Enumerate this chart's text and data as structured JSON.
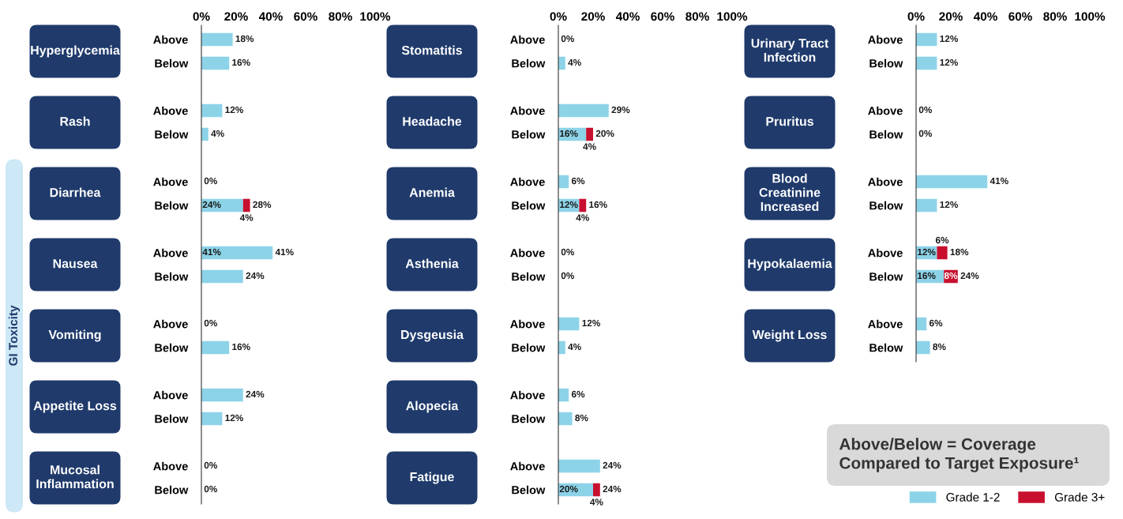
{
  "chart_data": [
    {
      "type": "bar",
      "orientation": "horizontal",
      "stacked": true,
      "grid": false,
      "legend": false,
      "categories": [
        "Above",
        "Below",
        "Above",
        "Below",
        "Above",
        "Below",
        "Above",
        "Below",
        "Above",
        "Below",
        "Above",
        "Below",
        "Above",
        "Below"
      ],
      "xlim": [
        0,
        100
      ],
      "xticks": [
        {
          "value": 0,
          "label": "0%"
        },
        {
          "value": 20,
          "label": "20%"
        },
        {
          "value": 40,
          "label": "40%"
        },
        {
          "value": 60,
          "label": "60%"
        },
        {
          "value": 80,
          "label": "80%"
        },
        {
          "value": 100,
          "label": "100%"
        }
      ],
      "series": [
        {
          "color": "#8dd3e8",
          "values": [
            18,
            16,
            12,
            4,
            0,
            24,
            41,
            24,
            0,
            16,
            24,
            12,
            0,
            0
          ],
          "value_labels": [
            null,
            null,
            null,
            null,
            null,
            "24%",
            "41%",
            null,
            null,
            null,
            null,
            null,
            null,
            null
          ]
        },
        {
          "color": "#c8102e",
          "values": [
            null,
            null,
            null,
            null,
            null,
            4,
            null,
            null,
            null,
            null,
            null,
            null,
            null,
            null
          ],
          "value_labels": [
            null,
            null,
            null,
            null,
            null,
            "4%",
            null,
            null,
            null,
            null,
            null,
            null,
            null,
            null
          ]
        }
      ],
      "totals": [
        "18%",
        "16%",
        "12%",
        "4%",
        "0%",
        "28%",
        "41%",
        "24%",
        "0%",
        "16%",
        "24%",
        "12%",
        "0%",
        "0%"
      ],
      "annotations": [
        "Hyperglycemia",
        "Rash",
        "Diarrhea",
        "Nausea",
        "Vomiting",
        "Appetite Loss",
        "Mucosal\nInflammation",
        "GI Toxicity"
      ]
    },
    {
      "type": "bar",
      "orientation": "horizontal",
      "stacked": true,
      "grid": false,
      "legend": false,
      "categories": [
        "Above",
        "Below",
        "Above",
        "Below",
        "Above",
        "Below",
        "Above",
        "Below",
        "Above",
        "Below",
        "Above",
        "Below",
        "Above",
        "Below"
      ],
      "xlim": [
        0,
        100
      ],
      "xticks": [
        {
          "value": 0,
          "label": "0%"
        },
        {
          "value": 20,
          "label": "20%"
        },
        {
          "value": 40,
          "label": "40%"
        },
        {
          "value": 60,
          "label": "60%"
        },
        {
          "value": 80,
          "label": "80%"
        },
        {
          "value": 100,
          "label": "100%"
        }
      ],
      "series": [
        {
          "color": "#8dd3e8",
          "values": [
            0,
            4,
            29,
            16,
            6,
            12,
            0,
            0,
            12,
            4,
            6,
            8,
            24,
            20
          ],
          "value_labels": [
            null,
            null,
            null,
            "16%",
            null,
            "12%",
            null,
            null,
            null,
            null,
            null,
            null,
            null,
            "20%"
          ]
        },
        {
          "color": "#c8102e",
          "values": [
            null,
            null,
            null,
            4,
            null,
            4,
            null,
            null,
            null,
            null,
            null,
            null,
            null,
            4
          ],
          "value_labels": [
            null,
            null,
            null,
            "4%",
            null,
            "4%",
            null,
            null,
            null,
            null,
            null,
            null,
            null,
            "4%"
          ]
        }
      ],
      "totals": [
        "0%",
        "4%",
        "29%",
        "20%",
        "6%",
        "16%",
        "0%",
        "0%",
        "12%",
        "4%",
        "6%",
        "8%",
        "24%",
        "24%"
      ],
      "annotations": [
        "Stomatitis",
        "Headache",
        "Anemia",
        "Asthenia",
        "Dysgeusia",
        "Alopecia",
        "Fatigue"
      ]
    },
    {
      "type": "bar",
      "orientation": "horizontal",
      "stacked": true,
      "grid": false,
      "legend": "bottom right",
      "categories": [
        "Above",
        "Below",
        "Above",
        "Below",
        "Above",
        "Below",
        "Above",
        "Below",
        "Above",
        "Below"
      ],
      "xlim": [
        0,
        100
      ],
      "xticks": [
        {
          "value": 0,
          "label": "0%"
        },
        {
          "value": 20,
          "label": "20%"
        },
        {
          "value": 40,
          "label": "40%"
        },
        {
          "value": 60,
          "label": "60%"
        },
        {
          "value": 80,
          "label": "80%"
        },
        {
          "value": 100,
          "label": "100%"
        }
      ],
      "series": [
        {
          "name": "Grade 1-2",
          "color": "#8dd3e8",
          "values": [
            12,
            12,
            0,
            0,
            41,
            12,
            12,
            16,
            6,
            8
          ],
          "value_labels": [
            null,
            null,
            null,
            null,
            null,
            null,
            "12%",
            "16%",
            null,
            null
          ]
        },
        {
          "name": "Grade 3+",
          "color": "#c8102e",
          "values": [
            null,
            null,
            null,
            null,
            null,
            null,
            6,
            8,
            null,
            null
          ],
          "value_labels": [
            null,
            null,
            null,
            null,
            null,
            null,
            "6%",
            "8%",
            null,
            null
          ]
        }
      ],
      "totals": [
        "12%",
        "12%",
        "0%",
        "0%",
        "41%",
        "12%",
        "18%",
        "24%",
        "6%",
        "8%"
      ],
      "annotations": [
        "Urinary Tract\nInfection",
        "Pruritus",
        "Blood\nCreatinine\nIncreased",
        "Hypokalaemia",
        "Weight Loss",
        "Above/Below = Coverage\nCompared to Target Exposure¹"
      ]
    }
  ]
}
